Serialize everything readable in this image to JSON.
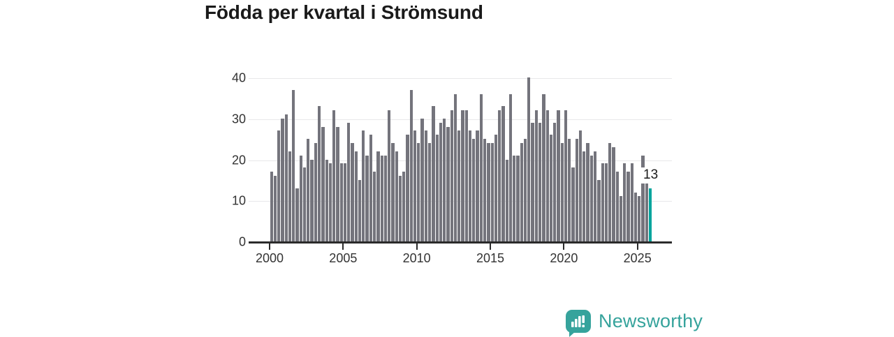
{
  "title": "Födda per kvartal i Strömsund",
  "colors": {
    "bar": "#74747c",
    "highlight": "#00a49c",
    "axis": "#2b2b2b",
    "grid": "#e8e8ea",
    "tick_label": "#333333",
    "title_text": "#1a1a1a",
    "logo_teal": "#36a39c"
  },
  "chart_data": {
    "type": "bar",
    "title": "Födda per kvartal i Strömsund",
    "xlabel": "",
    "ylabel": "",
    "start_period": "2000-Q1",
    "frequency": "quarterly",
    "ylim": [
      0,
      40
    ],
    "y_ticks": [
      0,
      10,
      20,
      30,
      40
    ],
    "x_tick_years": [
      "2000",
      "2005",
      "2010",
      "2015",
      "2020",
      "2025"
    ],
    "grid": true,
    "legend": false,
    "values": [
      17,
      16,
      27,
      30,
      31,
      22,
      37,
      13,
      21,
      18,
      25,
      20,
      24,
      33,
      28,
      20,
      19,
      32,
      28,
      19,
      19,
      29,
      24,
      22,
      15,
      27,
      21,
      26,
      17,
      22,
      21,
      21,
      32,
      24,
      22,
      16,
      17,
      26,
      37,
      27,
      24,
      30,
      27,
      24,
      33,
      26,
      29,
      30,
      28,
      32,
      36,
      27,
      32,
      32,
      27,
      25,
      27,
      36,
      25,
      24,
      24,
      26,
      32,
      33,
      20,
      36,
      21,
      21,
      24,
      25,
      40,
      29,
      32,
      29,
      36,
      32,
      26,
      29,
      32,
      24,
      32,
      25,
      18,
      25,
      27,
      22,
      24,
      21,
      22,
      15,
      19,
      19,
      24,
      23,
      17,
      11,
      19,
      17,
      19,
      12,
      11,
      21,
      15,
      13
    ],
    "highlight_last": true,
    "annotation": {
      "text": "13",
      "target": "last-bar"
    }
  },
  "logo": {
    "text": "Newsworthy"
  }
}
